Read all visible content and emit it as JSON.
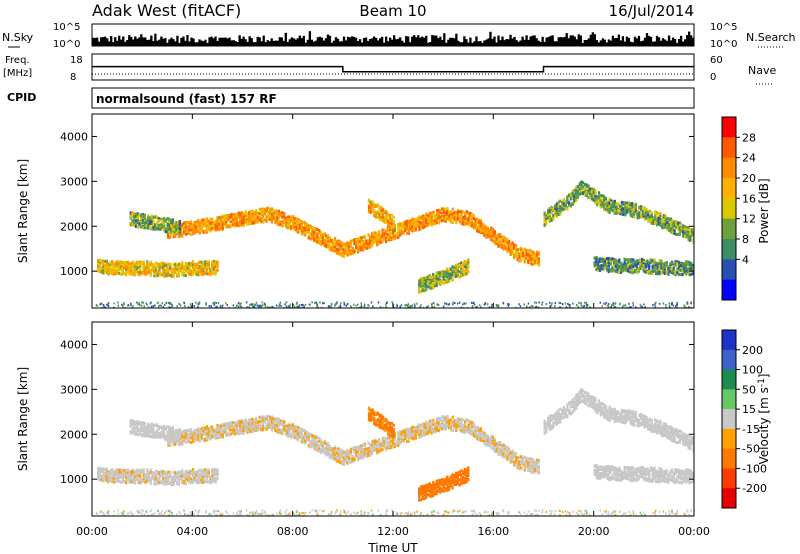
{
  "header": {
    "station": "Adak West (fitACF)",
    "beam": "Beam 10",
    "date": "16/Jul/2014"
  },
  "top_panels": {
    "nsky_label": "N.Sky",
    "nsky_ticks": [
      "10^5",
      "10^0"
    ],
    "nsearch_label": "N.Search",
    "freq_label": "Freq.",
    "freq_unit": "[MHz]",
    "freq_ticks": [
      "18",
      "8"
    ],
    "nave_label": "Nave",
    "nave_ticks": [
      "60",
      "0"
    ],
    "cpid_label": "CPID",
    "cpid_text": "normalsound (fast) 157 RF"
  },
  "power_colorbar": {
    "label": "Power [dB]",
    "ticks": [
      "28",
      "24",
      "20",
      "16",
      "12",
      "8",
      "4"
    ],
    "colors": [
      "#ff0000",
      "#ff5a00",
      "#ff8c00",
      "#ffb000",
      "#dcc800",
      "#6ea03c",
      "#3c8c64",
      "#2850b4",
      "#0000ff"
    ]
  },
  "velocity_colorbar": {
    "label": "Velocity [m s^-1]",
    "ticks": [
      "200",
      "100",
      "50",
      "15",
      "-15",
      "-50",
      "-100",
      "-200"
    ],
    "colors": [
      "#1e32c8",
      "#3c64c8",
      "#1e8c50",
      "#64c864",
      "#c8c8c8",
      "#ffa000",
      "#ff7800",
      "#ff3c00",
      "#e60000"
    ]
  },
  "chart_data": {
    "type": "heatmap",
    "xlabel": "Time UT",
    "ylabel": "Slant Range [km]",
    "xticks": [
      "00:00",
      "04:00",
      "08:00",
      "12:00",
      "16:00",
      "20:00",
      "00:00"
    ],
    "yticks": [
      1000,
      2000,
      3000,
      4000
    ],
    "xlim_hours": [
      0,
      24
    ],
    "ylim_km": [
      180,
      4500
    ],
    "frequency_mhz": [
      {
        "start_hour": 0,
        "end_hour": 10,
        "value": 13.5
      },
      {
        "start_hour": 10,
        "end_hour": 18,
        "value": 10.5
      },
      {
        "start_hour": 18,
        "end_hour": 24,
        "value": 13.5
      }
    ],
    "echo_bands": [
      {
        "name": "ionospheric",
        "points": [
          [
            0.2,
            1150
          ],
          [
            1,
            1100
          ],
          [
            2,
            1100
          ],
          [
            3,
            1050
          ],
          [
            4,
            1100
          ],
          [
            5,
            1100
          ]
        ],
        "power_db": 18,
        "velocity": -5
      },
      {
        "name": "upper-trace",
        "points": [
          [
            3,
            1900
          ],
          [
            4,
            2000
          ],
          [
            5,
            2100
          ],
          [
            6,
            2200
          ],
          [
            7,
            2300
          ],
          [
            8,
            2100
          ],
          [
            9,
            1800
          ],
          [
            10,
            1500
          ],
          [
            12,
            1900
          ],
          [
            14,
            2300
          ],
          [
            15,
            2200
          ],
          [
            16,
            1800
          ],
          [
            17,
            1400
          ],
          [
            17.8,
            1300
          ]
        ],
        "power_db": 22,
        "velocity": -10
      },
      {
        "name": "high-trace",
        "points": [
          [
            1.5,
            2200
          ],
          [
            2.5,
            2100
          ],
          [
            3.5,
            2000
          ]
        ],
        "power_db": 12,
        "velocity": 0
      },
      {
        "name": "late-trace",
        "points": [
          [
            18,
            2200
          ],
          [
            19,
            2600
          ],
          [
            19.5,
            2900
          ],
          [
            20.5,
            2500
          ],
          [
            21.5,
            2400
          ],
          [
            22.5,
            2200
          ],
          [
            24,
            1800
          ]
        ],
        "power_db": 12,
        "velocity": 0
      },
      {
        "name": "evening",
        "points": [
          [
            20,
            1200
          ],
          [
            21,
            1150
          ],
          [
            22,
            1150
          ],
          [
            23,
            1100
          ],
          [
            24,
            1100
          ]
        ],
        "power_db": 10,
        "velocity": 0
      },
      {
        "name": "patch-a",
        "points": [
          [
            11,
            2500
          ],
          [
            12,
            2100
          ]
        ],
        "power_db": 20,
        "velocity": -60
      },
      {
        "name": "patch-b",
        "points": [
          [
            13,
            700
          ],
          [
            14,
            900
          ],
          [
            15,
            1150
          ]
        ],
        "power_db": 14,
        "velocity": -70
      }
    ]
  }
}
